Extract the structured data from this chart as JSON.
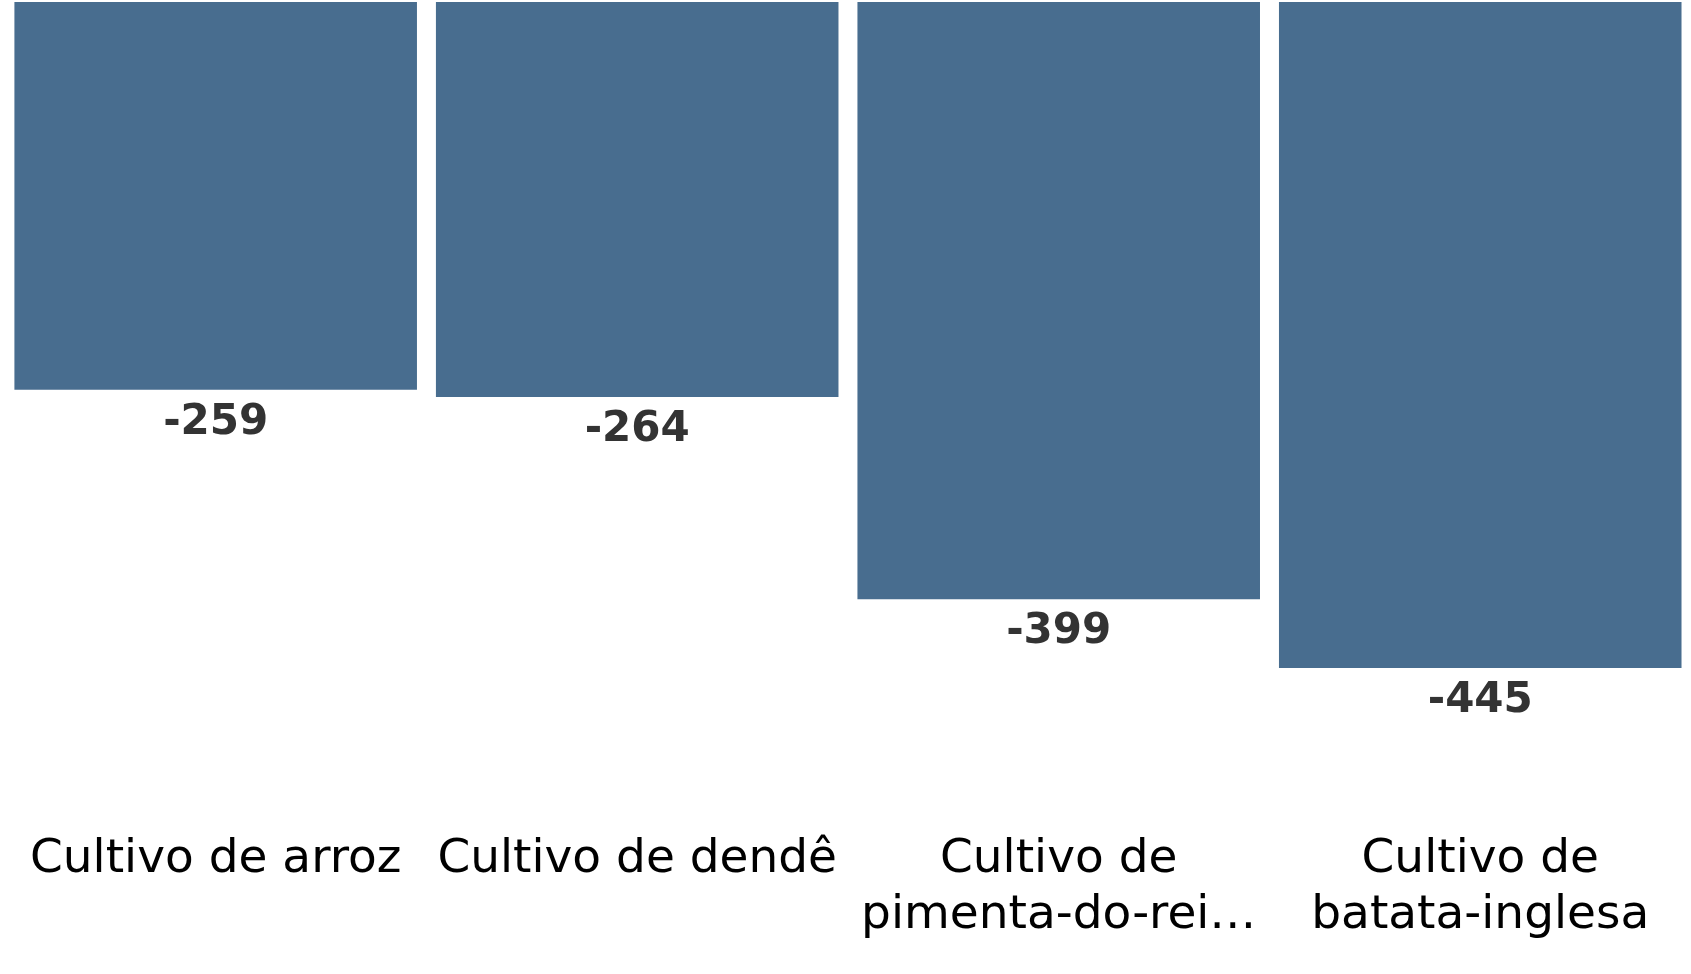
{
  "chart_data": {
    "type": "bar",
    "categories": [
      "Cultivo de arroz",
      "Cultivo de dendê",
      "Cultivo de pimenta-do-rei…",
      "Cultivo de batata-inglesa"
    ],
    "values": [
      -259,
      -264,
      -399,
      -445
    ],
    "color": "#486d8f",
    "data_labels": true,
    "grid": false,
    "legend": false
  }
}
